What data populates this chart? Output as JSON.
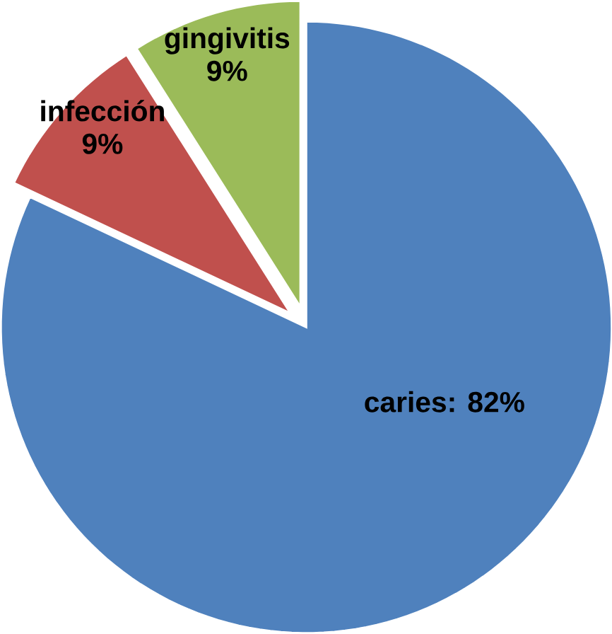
{
  "chart_data": {
    "type": "pie",
    "categories": [
      "caries",
      "infección",
      "gingivitis"
    ],
    "values": [
      82,
      9,
      9
    ],
    "colors": [
      "#4f81bd",
      "#c0504d",
      "#9bbb59"
    ],
    "value_labels": [
      ": 82%",
      "9%",
      "9%"
    ]
  }
}
